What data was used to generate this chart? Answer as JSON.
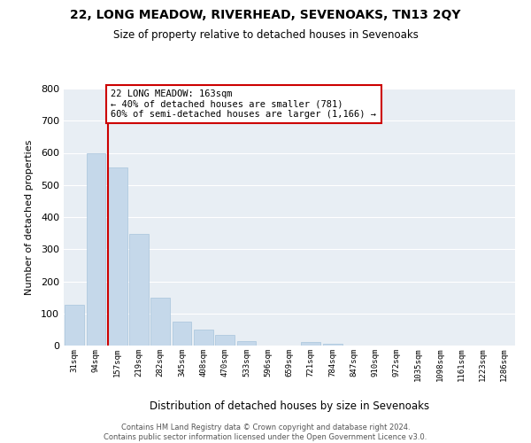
{
  "title": "22, LONG MEADOW, RIVERHEAD, SEVENOAKS, TN13 2QY",
  "subtitle": "Size of property relative to detached houses in Sevenoaks",
  "xlabel": "Distribution of detached houses by size in Sevenoaks",
  "ylabel": "Number of detached properties",
  "categories": [
    "31sqm",
    "94sqm",
    "157sqm",
    "219sqm",
    "282sqm",
    "345sqm",
    "408sqm",
    "470sqm",
    "533sqm",
    "596sqm",
    "659sqm",
    "721sqm",
    "784sqm",
    "847sqm",
    "910sqm",
    "972sqm",
    "1035sqm",
    "1098sqm",
    "1161sqm",
    "1223sqm",
    "1286sqm"
  ],
  "values": [
    128,
    600,
    555,
    348,
    148,
    75,
    50,
    33,
    15,
    0,
    0,
    10,
    5,
    0,
    0,
    0,
    0,
    0,
    0,
    0,
    0
  ],
  "bar_color": "#c5d8ea",
  "bar_edge_color": "#a8c4dc",
  "annotation_label": "22 LONG MEADOW: 163sqm",
  "annotation_line1": "← 40% of detached houses are smaller (781)",
  "annotation_line2": "60% of semi-detached houses are larger (1,166) →",
  "marker_color": "#cc0000",
  "ylim": [
    0,
    800
  ],
  "yticks": [
    0,
    100,
    200,
    300,
    400,
    500,
    600,
    700,
    800
  ],
  "background_color": "#e8eef4",
  "grid_color": "#ffffff",
  "footer_line1": "Contains HM Land Registry data © Crown copyright and database right 2024.",
  "footer_line2": "Contains public sector information licensed under the Open Government Licence v3.0."
}
